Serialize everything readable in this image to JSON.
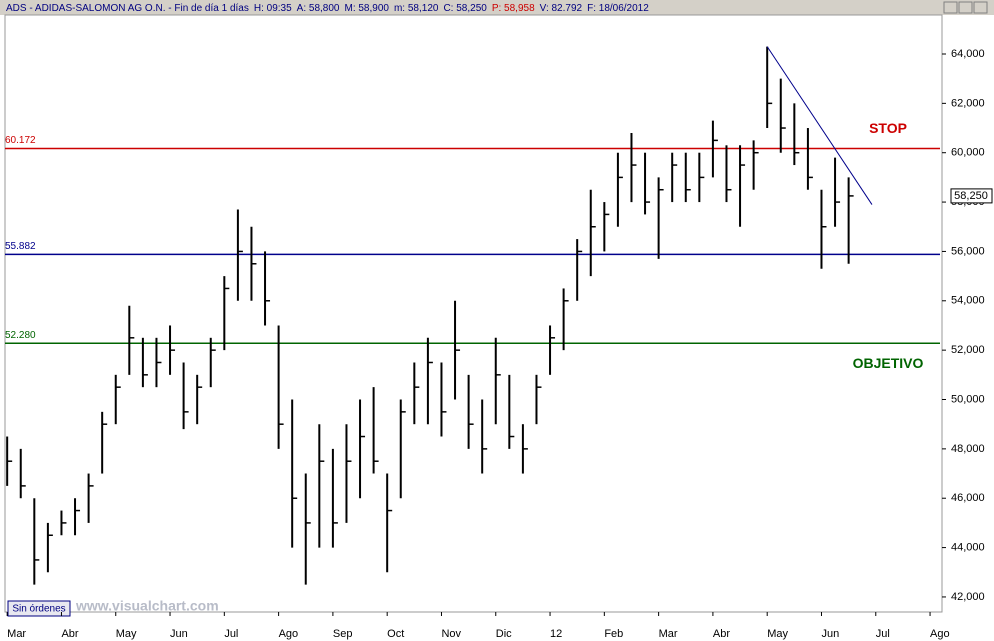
{
  "header": {
    "items": [
      "ADS - ADIDAS-SALOMON AG O.N. - Fin de día 1 días",
      "H: 09:35",
      "A: 58,800",
      "M: 58,900",
      "m: 58,120",
      "C: 58,250",
      "P: 58,958",
      "V: 82.792",
      "F: 18/06/2012"
    ]
  },
  "footer": {
    "status": "Sin órdenes",
    "watermark": "www.visualchart.com"
  },
  "chart_data": {
    "type": "ohlc",
    "color": "#000000",
    "x": [
      0,
      0.25,
      0.5,
      0.75,
      1,
      1.25,
      1.5,
      1.75,
      2,
      2.25,
      2.5,
      2.75,
      3,
      3.25,
      3.5,
      3.75,
      4,
      4.25,
      4.5,
      4.75,
      5,
      5.25,
      5.5,
      5.75,
      6,
      6.25,
      6.5,
      6.75,
      7,
      7.25,
      7.5,
      7.75,
      8,
      8.25,
      8.5,
      8.75,
      9,
      9.25,
      9.5,
      9.75,
      10,
      10.25,
      10.5,
      10.75,
      11,
      11.25,
      11.5,
      11.75,
      12,
      12.25,
      12.5,
      12.75,
      13,
      13.25,
      13.5,
      13.75,
      14,
      14.25,
      14.5,
      14.75,
      15,
      15.25,
      15.5
    ],
    "high": [
      48.5,
      48,
      46,
      45,
      45.5,
      46,
      47,
      49.5,
      51,
      53.8,
      52.5,
      52.5,
      53,
      51.5,
      51,
      52.5,
      55,
      57.7,
      57,
      56,
      53,
      50,
      47,
      49,
      48,
      49,
      50,
      50.5,
      47,
      50,
      51.5,
      52.5,
      51.5,
      54,
      51,
      50,
      52.5,
      51,
      49,
      51,
      53,
      54.5,
      56.5,
      58.5,
      58,
      60,
      60.8,
      60,
      59,
      60,
      60,
      60,
      61.3,
      60.3,
      60.3,
      60.5,
      64.3,
      63,
      62,
      61,
      58.5,
      59.8,
      59
    ],
    "low": [
      46.5,
      46,
      42.5,
      43,
      44.5,
      44.5,
      45,
      47,
      49,
      51,
      50.5,
      50.5,
      51,
      48.8,
      49,
      50.5,
      52,
      54,
      54,
      53,
      48,
      44,
      42.5,
      44,
      44,
      45,
      46,
      47,
      43,
      46,
      49,
      49,
      48.5,
      50,
      48,
      47,
      49,
      48,
      47,
      49,
      51,
      52,
      54,
      55,
      56,
      57,
      58,
      57.5,
      55.7,
      58,
      58,
      58,
      59,
      58,
      57,
      58.5,
      61,
      60,
      59.5,
      58.5,
      55.3,
      57,
      55.5
    ],
    "close": [
      47.5,
      46.5,
      43.5,
      44.5,
      45,
      45.5,
      46.5,
      49,
      50.5,
      52.5,
      51,
      51.5,
      52,
      49.5,
      50.5,
      52,
      54.5,
      56,
      55.5,
      54,
      49,
      46,
      45,
      47.5,
      45,
      47.5,
      48.5,
      47.5,
      45.5,
      49.5,
      50.5,
      51.5,
      49.5,
      52,
      49,
      48,
      51,
      48.5,
      48,
      50.5,
      52.5,
      54,
      56,
      57,
      57.5,
      59,
      59.5,
      58,
      58.5,
      59.5,
      58.5,
      59,
      60.5,
      58.5,
      59.5,
      60,
      62,
      61,
      60,
      59,
      57,
      58,
      58.25
    ],
    "ylim": [
      41.39,
      65.58
    ],
    "yticks": [
      {
        "value": 42,
        "label": "42,000"
      },
      {
        "value": 44,
        "label": "44,000"
      },
      {
        "value": 46,
        "label": "46,000"
      },
      {
        "value": 48,
        "label": "48,000"
      },
      {
        "value": 50,
        "label": "50,000"
      },
      {
        "value": 52,
        "label": "52,000"
      },
      {
        "value": 54,
        "label": "54,000"
      },
      {
        "value": 56,
        "label": "56,000"
      },
      {
        "value": 58,
        "label": "58,000"
      },
      {
        "value": 60,
        "label": "60,000"
      },
      {
        "value": 62,
        "label": "62,000"
      },
      {
        "value": 64,
        "label": "64,000"
      }
    ],
    "xlim": [
      -0.04,
      17.22
    ],
    "xticks": [
      {
        "value": 0,
        "label": "Mar"
      },
      {
        "value": 1,
        "label": "Abr"
      },
      {
        "value": 2,
        "label": "May"
      },
      {
        "value": 3,
        "label": "Jun"
      },
      {
        "value": 4,
        "label": "Jul"
      },
      {
        "value": 5,
        "label": "Ago"
      },
      {
        "value": 6,
        "label": "Sep"
      },
      {
        "value": 7,
        "label": "Oct"
      },
      {
        "value": 8,
        "label": "Nov"
      },
      {
        "value": 9,
        "label": "Dic"
      },
      {
        "value": 10,
        "label": "12"
      },
      {
        "value": 11,
        "label": "Feb"
      },
      {
        "value": 12,
        "label": "Mar"
      },
      {
        "value": 13,
        "label": "Abr"
      },
      {
        "value": 14,
        "label": "May"
      },
      {
        "value": 15,
        "label": "Jun"
      },
      {
        "value": 16,
        "label": "Jul"
      },
      {
        "value": 17,
        "label": "Ago"
      }
    ],
    "levels": [
      {
        "value": 60.172,
        "label": "60.172",
        "color": "#cc0000",
        "annotation": "STOP"
      },
      {
        "value": 55.882,
        "label": "55.882",
        "color": "#00008b"
      },
      {
        "value": 52.28,
        "label": "52.280",
        "color": "#006400",
        "annotation": "OBJETIVO"
      }
    ],
    "trendline": {
      "x": [
        14,
        15.93
      ],
      "y": [
        64.3,
        57.9
      ],
      "color": "#00008b"
    },
    "last": {
      "value": 58.25,
      "label": "58,250"
    }
  }
}
